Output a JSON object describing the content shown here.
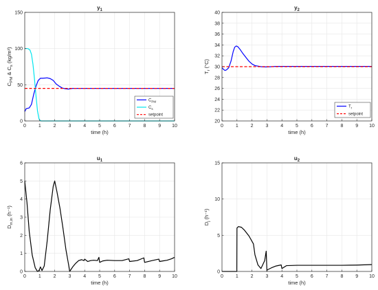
{
  "chart_data": [
    {
      "type": "line",
      "title": "y₁",
      "xlabel": "time (h)",
      "ylabel": "C_PM & C_s (kg/m³)",
      "xlim": [
        0,
        10
      ],
      "ylim": [
        0,
        150
      ],
      "xticks": [
        0,
        1,
        2,
        3,
        4,
        5,
        6,
        7,
        8,
        9,
        10
      ],
      "yticks": [
        0,
        50,
        100,
        150
      ],
      "grid": true,
      "legend": "bottom-right",
      "series": [
        {
          "name": "C_PM",
          "color": "#0000ff",
          "style": "solid",
          "x": [
            0,
            0.1,
            0.3,
            0.45,
            0.6,
            0.75,
            0.9,
            1.05,
            1.2,
            1.5,
            1.7,
            1.9,
            2.1,
            2.3,
            2.5,
            2.7,
            2.9,
            3.2,
            3.6,
            4,
            5,
            6,
            7,
            8,
            9,
            10
          ],
          "y": [
            13,
            17,
            18,
            23,
            37,
            48,
            56,
            59,
            59,
            59.5,
            58.5,
            56,
            51,
            48,
            45.5,
            44.5,
            44,
            45,
            45,
            45,
            45,
            45,
            45,
            45,
            45,
            45
          ]
        },
        {
          "name": "C_s",
          "color": "#00e5ee",
          "style": "solid",
          "x": [
            0,
            0.2,
            0.35,
            0.45,
            0.55,
            0.65,
            0.75,
            0.85,
            0.95,
            1.0,
            1.1,
            2,
            4,
            6,
            8,
            10
          ],
          "y": [
            100,
            100,
            98,
            92,
            78,
            58,
            35,
            14,
            3,
            1,
            0,
            0,
            0,
            0,
            0,
            0
          ]
        },
        {
          "name": "setpoint",
          "color": "#ff0000",
          "style": "dashed",
          "x": [
            0,
            10
          ],
          "y": [
            45,
            45
          ]
        }
      ]
    },
    {
      "type": "line",
      "title": "y₂",
      "xlabel": "time (h)",
      "ylabel": "T_r (°C)",
      "xlim": [
        0,
        10
      ],
      "ylim": [
        20,
        40
      ],
      "xticks": [
        0,
        1,
        2,
        3,
        4,
        5,
        6,
        7,
        8,
        9,
        10
      ],
      "yticks": [
        20,
        22,
        24,
        26,
        28,
        30,
        32,
        34,
        36,
        38,
        40
      ],
      "grid": true,
      "legend": "bottom-right",
      "series": [
        {
          "name": "T_r",
          "color": "#0000ff",
          "style": "solid",
          "x": [
            0,
            0.1,
            0.2,
            0.3,
            0.45,
            0.6,
            0.75,
            0.85,
            0.95,
            1.05,
            1.2,
            1.4,
            1.6,
            1.8,
            2.0,
            2.2,
            2.4,
            2.6,
            2.8,
            3.0,
            3.3,
            3.6,
            4,
            5,
            6,
            7,
            8,
            9,
            10
          ],
          "y": [
            29.8,
            29.5,
            29.3,
            29.4,
            29.8,
            31,
            32.8,
            33.6,
            33.8,
            33.7,
            33.2,
            32.4,
            31.7,
            31.0,
            30.5,
            30.2,
            30.1,
            30.0,
            29.95,
            29.95,
            30.0,
            30.05,
            30.05,
            30.05,
            30.05,
            30.05,
            30.05,
            30.05,
            30.05
          ]
        },
        {
          "name": "setpoint",
          "color": "#ff0000",
          "style": "dashed",
          "x": [
            0,
            10
          ],
          "y": [
            30,
            30
          ]
        }
      ]
    },
    {
      "type": "line",
      "title": "u₁",
      "xlabel": "time (h)",
      "ylabel": "D_m,in (h⁻¹)",
      "xlim": [
        0,
        10
      ],
      "ylim": [
        0,
        6
      ],
      "xticks": [
        0,
        1,
        2,
        3,
        4,
        5,
        6,
        7,
        8,
        9,
        10
      ],
      "yticks": [
        0,
        1,
        2,
        3,
        4,
        5,
        6
      ],
      "grid": true,
      "series": [
        {
          "name": "",
          "color": "#000000",
          "style": "solid",
          "x": [
            0,
            0.15,
            0.3,
            0.5,
            0.7,
            0.85,
            0.95,
            1.05,
            1.15,
            1.3,
            1.5,
            1.7,
            1.9,
            2.0,
            2.15,
            2.35,
            2.55,
            2.75,
            2.9,
            3.0,
            3.2,
            3.4,
            3.6,
            3.8,
            3.95,
            4.0,
            4.2,
            4.4,
            4.6,
            4.85,
            4.95,
            5.0,
            5.2,
            5.5,
            6.0,
            6.5,
            6.95,
            7.0,
            7.5,
            7.95,
            8.0,
            8.5,
            8.95,
            9.0,
            9.2,
            9.5,
            9.8,
            10
          ],
          "y": [
            5.0,
            3.8,
            2.2,
            0.9,
            0.2,
            0.0,
            0.05,
            0.25,
            0.05,
            0.3,
            1.7,
            3.4,
            4.7,
            5.0,
            4.4,
            3.5,
            2.4,
            1.2,
            0.5,
            0.0,
            0.25,
            0.45,
            0.6,
            0.65,
            0.6,
            0.68,
            0.55,
            0.6,
            0.62,
            0.6,
            0.78,
            0.5,
            0.58,
            0.62,
            0.6,
            0.6,
            0.7,
            0.55,
            0.6,
            0.75,
            0.5,
            0.6,
            0.68,
            0.55,
            0.58,
            0.62,
            0.7,
            0.78
          ]
        }
      ]
    },
    {
      "type": "line",
      "title": "u₂",
      "xlabel": "time (h)",
      "ylabel": "D_j (h⁻¹)",
      "xlim": [
        0,
        10
      ],
      "ylim": [
        0,
        15
      ],
      "xticks": [
        0,
        1,
        2,
        3,
        4,
        5,
        6,
        7,
        8,
        9,
        10
      ],
      "yticks": [
        0,
        5,
        10,
        15
      ],
      "grid": true,
      "series": [
        {
          "name": "",
          "color": "#000000",
          "style": "solid",
          "x": [
            0,
            0.99,
            1.0,
            1.1,
            1.3,
            1.5,
            1.8,
            2.1,
            2.2,
            2.4,
            2.6,
            2.85,
            2.95,
            3.0,
            3.01,
            3.3,
            3.6,
            3.95,
            4.0,
            4.3,
            5,
            6,
            7,
            8,
            9,
            10
          ],
          "y": [
            0,
            0,
            6.0,
            6.2,
            6.1,
            5.7,
            4.9,
            3.8,
            2.3,
            0.9,
            0.4,
            1.5,
            2.8,
            0.05,
            0.2,
            0.5,
            0.75,
            0.9,
            0.4,
            0.8,
            0.85,
            0.85,
            0.85,
            0.85,
            0.88,
            0.95
          ]
        }
      ]
    }
  ]
}
